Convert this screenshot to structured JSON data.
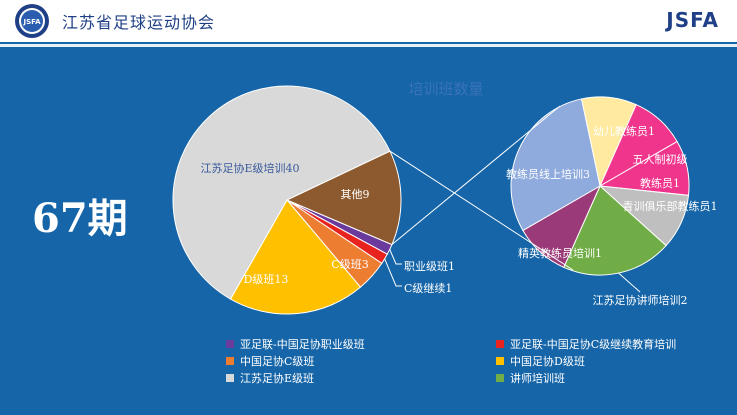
{
  "header": {
    "org_name": "江苏省足球运动协会",
    "brand": "JSFA",
    "logo_text": "JSFA"
  },
  "headline": "67期",
  "chart_data": {
    "type": "pie",
    "title": "培训班数量",
    "slices": [
      {
        "name": "亚足联-中国足协职业级班",
        "label": "职业级班1",
        "value": 1,
        "color": "#6a3a9c"
      },
      {
        "name": "亚足联-中国足协C级继续教育培训",
        "label": "C级继续1",
        "value": 1,
        "color": "#e8231e"
      },
      {
        "name": "中国足协C级班",
        "label": "C级班3",
        "value": 3,
        "color": "#ed7d31"
      },
      {
        "name": "中国足协D级班",
        "label": "D级班13",
        "value": 13,
        "color": "#ffc000"
      },
      {
        "name": "江苏足协E级班",
        "label": "江苏足协E级培训40",
        "value": 40,
        "color": "#d9d9d9"
      },
      {
        "name": "其他",
        "label": "其他9",
        "value": 9,
        "color": "#8c5a2e"
      }
    ],
    "sub_pie": {
      "slices": [
        {
          "label": "幼儿教练员1",
          "value": 1,
          "color": "#ffeaa0"
        },
        {
          "label": "五人制初级",
          "value": 1,
          "color": "#f0358c"
        },
        {
          "label": "教练员1",
          "value": 1,
          "color": "#f0358c"
        },
        {
          "label": "青训俱乐部教练员1",
          "value": 1,
          "color": "#bfbfbf"
        },
        {
          "label": "江苏足协讲师培训2",
          "value": 2,
          "color": "#70ad47"
        },
        {
          "label": "精英教练员培训1",
          "value": 1,
          "color": "#9b3a78"
        },
        {
          "label": "教练员线上培训3",
          "value": 3,
          "color": "#8faadc"
        }
      ]
    },
    "legend": [
      {
        "label": "亚足联-中国足协职业级班",
        "color": "#6a3a9c"
      },
      {
        "label": "亚足联-中国足协C级继续教育培训",
        "color": "#e8231e"
      },
      {
        "label": "中国足协C级班",
        "color": "#ed7d31"
      },
      {
        "label": "中国足协D级班",
        "color": "#ffc000"
      },
      {
        "label": "江苏足协E级班",
        "color": "#d9d9d9"
      },
      {
        "label": "讲师培训班",
        "color": "#70ad47"
      }
    ]
  }
}
